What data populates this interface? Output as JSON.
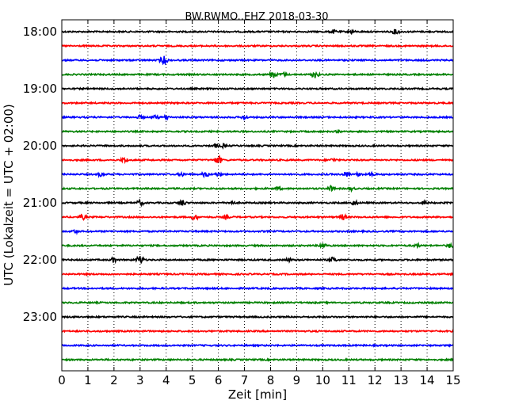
{
  "chart_data": {
    "type": "line",
    "title": "BW.RWMO..EHZ 2018-03-30",
    "xlabel": "Zeit  [min]",
    "ylabel": "UTC (Lokalzeit = UTC + 02:00)",
    "xlim": [
      0,
      15
    ],
    "x_ticks": [
      "0",
      "1",
      "2",
      "3",
      "4",
      "5",
      "6",
      "7",
      "8",
      "9",
      "10",
      "11",
      "12",
      "13",
      "14",
      "15"
    ],
    "y_ticks": [
      "18:00",
      "19:00",
      "20:00",
      "21:00",
      "22:00",
      "23:00"
    ],
    "grid": "vertical dotted",
    "trace_colors": [
      "#000000",
      "#ff0000",
      "#0000ff",
      "#008000"
    ],
    "traces": [
      {
        "start": "18:00",
        "events": [
          [
            10.4,
            3
          ],
          [
            11.1,
            3
          ],
          [
            12.8,
            4
          ]
        ]
      },
      {
        "start": "18:15",
        "events": []
      },
      {
        "start": "18:30",
        "events": [
          [
            3.9,
            6
          ]
        ]
      },
      {
        "start": "18:45",
        "events": [
          [
            8.1,
            5
          ],
          [
            8.5,
            3
          ],
          [
            9.7,
            5
          ]
        ]
      },
      {
        "start": "19:00",
        "events": []
      },
      {
        "start": "19:15",
        "events": []
      },
      {
        "start": "19:30",
        "events": [
          [
            3.0,
            3
          ],
          [
            3.6,
            3
          ],
          [
            4.0,
            3
          ],
          [
            7.0,
            3
          ]
        ]
      },
      {
        "start": "19:45",
        "events": [
          [
            10.6,
            2
          ]
        ]
      },
      {
        "start": "20:00",
        "events": [
          [
            5.9,
            3
          ],
          [
            6.2,
            3
          ]
        ]
      },
      {
        "start": "20:15",
        "events": [
          [
            2.4,
            4
          ],
          [
            6.0,
            6
          ],
          [
            10.4,
            3
          ]
        ]
      },
      {
        "start": "20:30",
        "events": [
          [
            1.5,
            3
          ],
          [
            4.6,
            3
          ],
          [
            5.5,
            4
          ],
          [
            6.0,
            3
          ],
          [
            10.9,
            4
          ],
          [
            11.4,
            3
          ],
          [
            11.9,
            3
          ]
        ]
      },
      {
        "start": "20:45",
        "events": [
          [
            8.3,
            3
          ],
          [
            10.3,
            4
          ],
          [
            11.1,
            3
          ]
        ]
      },
      {
        "start": "21:00",
        "events": [
          [
            3.0,
            4
          ],
          [
            4.6,
            5
          ],
          [
            6.5,
            3
          ],
          [
            11.2,
            4
          ],
          [
            13.9,
            3
          ]
        ]
      },
      {
        "start": "21:15",
        "events": [
          [
            0.8,
            4
          ],
          [
            5.1,
            4
          ],
          [
            6.3,
            3
          ],
          [
            10.8,
            4
          ]
        ]
      },
      {
        "start": "21:30",
        "events": [
          [
            0.5,
            3
          ]
        ]
      },
      {
        "start": "21:45",
        "events": [
          [
            10.0,
            4
          ],
          [
            13.6,
            3
          ],
          [
            14.9,
            4
          ]
        ]
      },
      {
        "start": "22:00",
        "events": [
          [
            2.0,
            4
          ],
          [
            3.0,
            6
          ],
          [
            8.7,
            3
          ],
          [
            10.4,
            4
          ]
        ]
      },
      {
        "start": "22:15",
        "events": []
      },
      {
        "start": "22:30",
        "events": []
      },
      {
        "start": "22:45",
        "events": []
      },
      {
        "start": "23:00",
        "events": []
      },
      {
        "start": "23:15",
        "events": []
      },
      {
        "start": "23:30",
        "events": []
      },
      {
        "start": "23:45",
        "events": []
      }
    ]
  }
}
